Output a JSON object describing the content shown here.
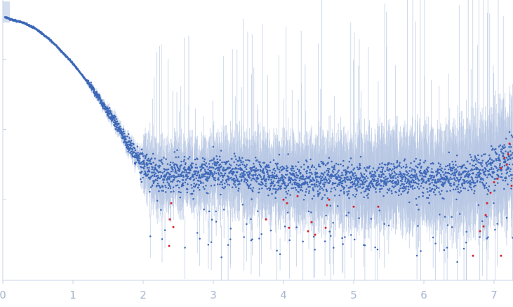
{
  "chart_data": {
    "type": "scatter",
    "title": "",
    "xlabel": "",
    "ylabel": "",
    "y_scale": "log",
    "xlim": [
      0,
      7.27
    ],
    "x_ticks": [
      {
        "value": 0,
        "label": "0"
      },
      {
        "value": 1,
        "label": "1"
      },
      {
        "value": 2,
        "label": "2"
      },
      {
        "value": 3,
        "label": "3"
      },
      {
        "value": 4,
        "label": "4"
      },
      {
        "value": 5,
        "label": "5"
      },
      {
        "value": 6,
        "label": "6"
      },
      {
        "value": 7,
        "label": "7"
      }
    ],
    "grid": false,
    "legend": "none",
    "colors": {
      "points": "#3d68b8",
      "outliers": "#d6232a",
      "error_bars": "#b8c8e4",
      "axis": "#c9d3e6",
      "tick_labels": "#a9b6d0"
    },
    "series": [
      {
        "points": [
          [
            0.05,
            3.6
          ],
          [
            0.15,
            3.56
          ],
          [
            0.25,
            3.54
          ],
          [
            0.35,
            3.5
          ],
          [
            0.45,
            3.45
          ],
          [
            0.55,
            3.38
          ],
          [
            0.65,
            3.3
          ],
          [
            0.75,
            3.21
          ],
          [
            0.85,
            3.1
          ],
          [
            0.95,
            3.0
          ],
          [
            1.05,
            2.88
          ],
          [
            1.15,
            2.75
          ],
          [
            1.25,
            2.62
          ],
          [
            1.35,
            2.48
          ],
          [
            1.45,
            2.33
          ],
          [
            1.55,
            2.18
          ],
          [
            1.65,
            2.02
          ],
          [
            1.75,
            1.86
          ],
          [
            1.85,
            1.7
          ],
          [
            1.95,
            1.56
          ],
          [
            2.05,
            1.47
          ],
          [
            2.2,
            1.36
          ],
          [
            2.4,
            1.35
          ],
          [
            2.6,
            1.37
          ],
          [
            2.8,
            1.38
          ],
          [
            3.0,
            1.39
          ],
          [
            3.2,
            1.38
          ],
          [
            3.4,
            1.37
          ],
          [
            3.6,
            1.35
          ],
          [
            3.8,
            1.33
          ],
          [
            4.0,
            1.31
          ],
          [
            4.2,
            1.3
          ],
          [
            4.4,
            1.29
          ],
          [
            4.6,
            1.28
          ],
          [
            4.8,
            1.28
          ],
          [
            5.0,
            1.29
          ],
          [
            5.2,
            1.3
          ],
          [
            5.4,
            1.31
          ],
          [
            5.6,
            1.32
          ],
          [
            5.8,
            1.32
          ],
          [
            6.0,
            1.32
          ],
          [
            6.2,
            1.31
          ],
          [
            6.4,
            1.31
          ],
          [
            6.6,
            1.33
          ],
          [
            6.8,
            1.38
          ],
          [
            7.0,
            1.45
          ],
          [
            7.15,
            1.55
          ],
          [
            7.25,
            1.62
          ]
        ]
      }
    ],
    "outliers": [
      [
        2.37,
        0.34
      ],
      [
        2.4,
        0.95
      ],
      [
        2.38,
        0.72
      ],
      [
        2.43,
        0.61
      ],
      [
        3.75,
        0.72
      ],
      [
        4.0,
        1.0
      ],
      [
        4.05,
        0.95
      ],
      [
        4.08,
        0.6
      ],
      [
        4.2,
        1.05
      ],
      [
        4.35,
        0.55
      ],
      [
        4.4,
        0.68
      ],
      [
        4.45,
        0.5
      ],
      [
        4.62,
        0.92
      ],
      [
        4.65,
        1.0
      ],
      [
        4.6,
        0.6
      ],
      [
        5.0,
        0.9
      ],
      [
        5.35,
        0.9
      ],
      [
        6.7,
        0.2
      ],
      [
        6.8,
        0.55
      ],
      [
        6.85,
        0.62
      ],
      [
        6.88,
        0.78
      ],
      [
        6.9,
        0.95
      ],
      [
        6.95,
        1.1
      ],
      [
        7.0,
        1.25
      ],
      [
        7.05,
        1.3
      ],
      [
        7.1,
        1.45
      ],
      [
        7.15,
        1.6
      ],
      [
        7.2,
        1.65
      ],
      [
        7.22,
        1.8
      ],
      [
        7.18,
        1.5
      ],
      [
        7.25,
        1.2
      ],
      [
        7.1,
        0.2
      ]
    ]
  }
}
